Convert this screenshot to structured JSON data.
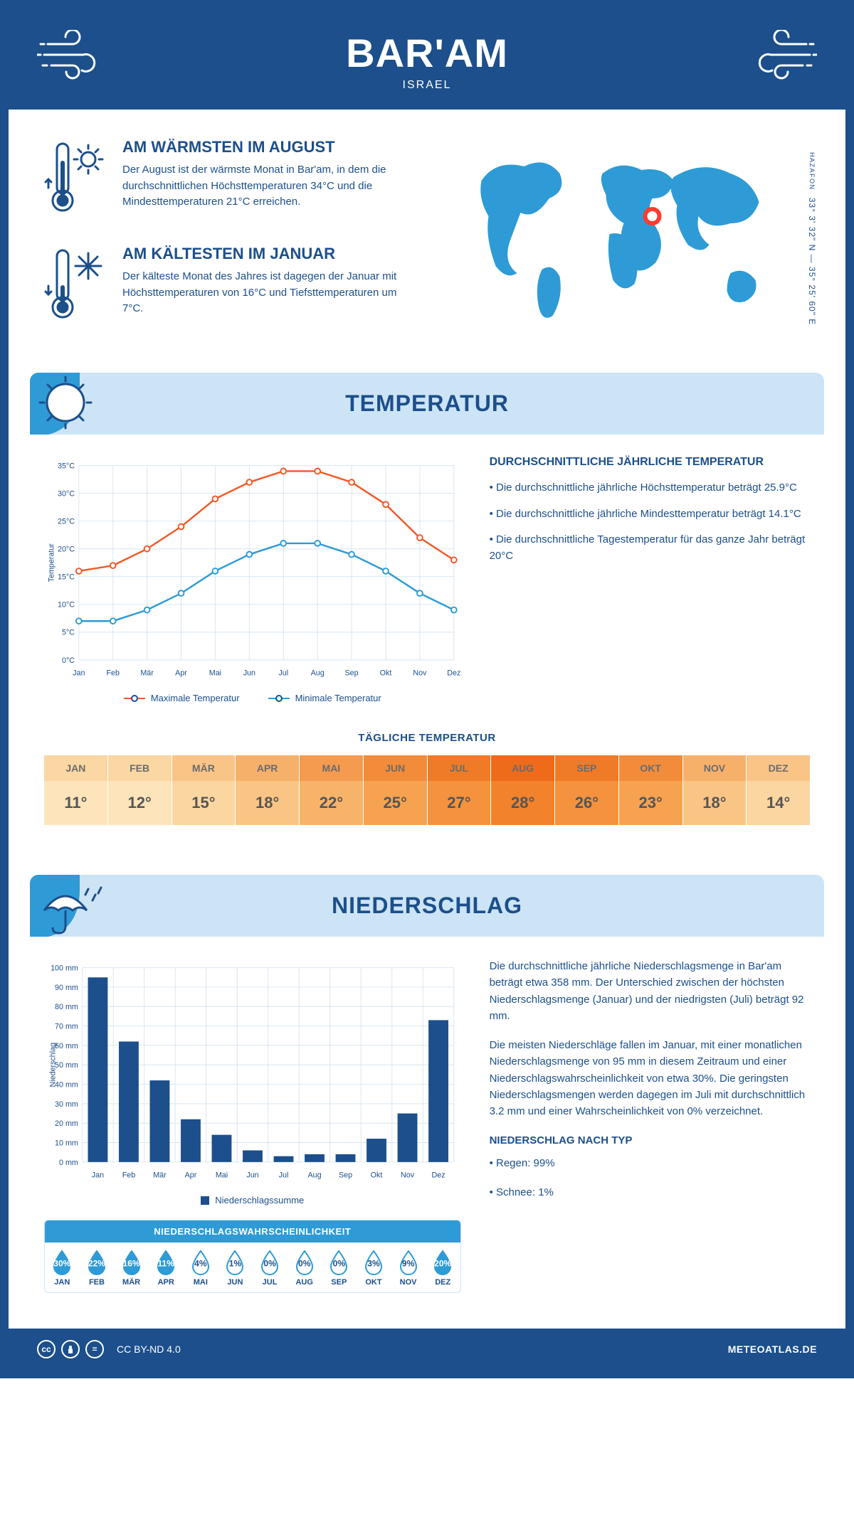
{
  "header": {
    "title": "BAR'AM",
    "subtitle": "ISRAEL"
  },
  "coords": {
    "region": "HAZAFON",
    "text": "33° 3' 32\" N — 35° 25' 60\" E"
  },
  "facts": {
    "warm": {
      "title": "AM WÄRMSTEN IM AUGUST",
      "text": "Der August ist der wärmste Monat in Bar'am, in dem die durchschnittlichen Höchsttemperaturen 34°C und die Mindesttemperaturen 21°C erreichen."
    },
    "cold": {
      "title": "AM KÄLTESTEN IM JANUAR",
      "text": "Der kälteste Monat des Jahres ist dagegen der Januar mit Höchsttemperaturen von 16°C und Tiefsttemperaturen um 7°C."
    }
  },
  "sections": {
    "temperature": "TEMPERATUR",
    "precipitation": "NIEDERSCHLAG"
  },
  "months": [
    "Jan",
    "Feb",
    "Mär",
    "Apr",
    "Mai",
    "Jun",
    "Jul",
    "Aug",
    "Sep",
    "Okt",
    "Nov",
    "Dez"
  ],
  "months_upper": [
    "JAN",
    "FEB",
    "MÄR",
    "APR",
    "MAI",
    "JUN",
    "JUL",
    "AUG",
    "SEP",
    "OKT",
    "NOV",
    "DEZ"
  ],
  "temp_chart": {
    "type": "line",
    "ylabel": "Temperatur",
    "ylim": [
      0,
      35
    ],
    "ytick_step": 5,
    "series_max": {
      "label": "Maximale Temperatur",
      "color": "#f05a28",
      "values": [
        16,
        17,
        20,
        24,
        29,
        32,
        34,
        34,
        32,
        28,
        22,
        18
      ]
    },
    "series_min": {
      "label": "Minimale Temperatur",
      "color": "#2e9bd6",
      "values": [
        7,
        7,
        9,
        12,
        16,
        19,
        21,
        21,
        19,
        16,
        12,
        9
      ]
    },
    "grid_color": "#d9e6f2",
    "axis_color": "#1c4f8b",
    "label_fontsize": 12
  },
  "temp_info": {
    "heading": "DURCHSCHNITTLICHE JÄHRLICHE TEMPERATUR",
    "b1": "• Die durchschnittliche jährliche Höchsttemperatur beträgt 25.9°C",
    "b2": "• Die durchschnittliche jährliche Mindesttemperatur beträgt 14.1°C",
    "b3": "• Die durchschnittliche Tagestemperatur für das ganze Jahr beträgt 20°C"
  },
  "daily_temp": {
    "heading": "TÄGLICHE TEMPERATUR",
    "values": [
      "11°",
      "12°",
      "15°",
      "18°",
      "22°",
      "25°",
      "27°",
      "28°",
      "26°",
      "23°",
      "18°",
      "14°"
    ],
    "header_colors": [
      "#fbd7a3",
      "#fbd7a3",
      "#f9c486",
      "#f7b06a",
      "#f59b4f",
      "#f28c3a",
      "#ef7b28",
      "#ed6b1a",
      "#ef7b28",
      "#f28c3a",
      "#f7b06a",
      "#f9c486"
    ],
    "value_colors": [
      "#fde4bb",
      "#fde4bb",
      "#fcd6a0",
      "#fac584",
      "#f8b36a",
      "#f6a251",
      "#f4923d",
      "#f2822b",
      "#f4923d",
      "#f6a251",
      "#fac584",
      "#fcd6a0"
    ]
  },
  "precip_chart": {
    "type": "bar",
    "ylabel": "Niederschlag",
    "ylim": [
      0,
      100
    ],
    "ytick_step": 10,
    "legend": "Niederschlagssumme",
    "bar_color": "#1c4f8b",
    "grid_color": "#d9e6f2",
    "values": [
      95,
      62,
      42,
      22,
      14,
      6,
      3,
      4,
      4,
      12,
      25,
      73
    ]
  },
  "precip_text": {
    "p1": "Die durchschnittliche jährliche Niederschlagsmenge in Bar'am beträgt etwa 358 mm. Der Unterschied zwischen der höchsten Niederschlagsmenge (Januar) und der niedrigsten (Juli) beträgt 92 mm.",
    "p2": "Die meisten Niederschläge fallen im Januar, mit einer monatlichen Niederschlagsmenge von 95 mm in diesem Zeitraum und einer Niederschlagswahrscheinlichkeit von etwa 30%. Die geringsten Niederschlagsmengen werden dagegen im Juli mit durchschnittlich 3.2 mm und einer Wahrscheinlichkeit von 0% verzeichnet.",
    "type_heading": "NIEDERSCHLAG NACH TYP",
    "type_rain": "• Regen: 99%",
    "type_snow": "• Schnee: 1%"
  },
  "precip_prob": {
    "heading": "NIEDERSCHLAGSWAHRSCHEINLICHKEIT",
    "values": [
      "30%",
      "22%",
      "16%",
      "11%",
      "4%",
      "1%",
      "0%",
      "0%",
      "0%",
      "3%",
      "9%",
      "20%"
    ],
    "filled": [
      true,
      true,
      true,
      true,
      false,
      false,
      false,
      false,
      false,
      false,
      false,
      true
    ],
    "fill_color": "#2e9bd6",
    "outline_color": "#2e9bd6"
  },
  "footer": {
    "license": "CC BY-ND 4.0",
    "site": "METEOATLAS.DE"
  },
  "colors": {
    "primary": "#1c4f8b",
    "light_blue": "#cce4f6",
    "accent_blue": "#2e9bd6",
    "orange": "#f05a28",
    "map_marker": "#ff3b30"
  }
}
